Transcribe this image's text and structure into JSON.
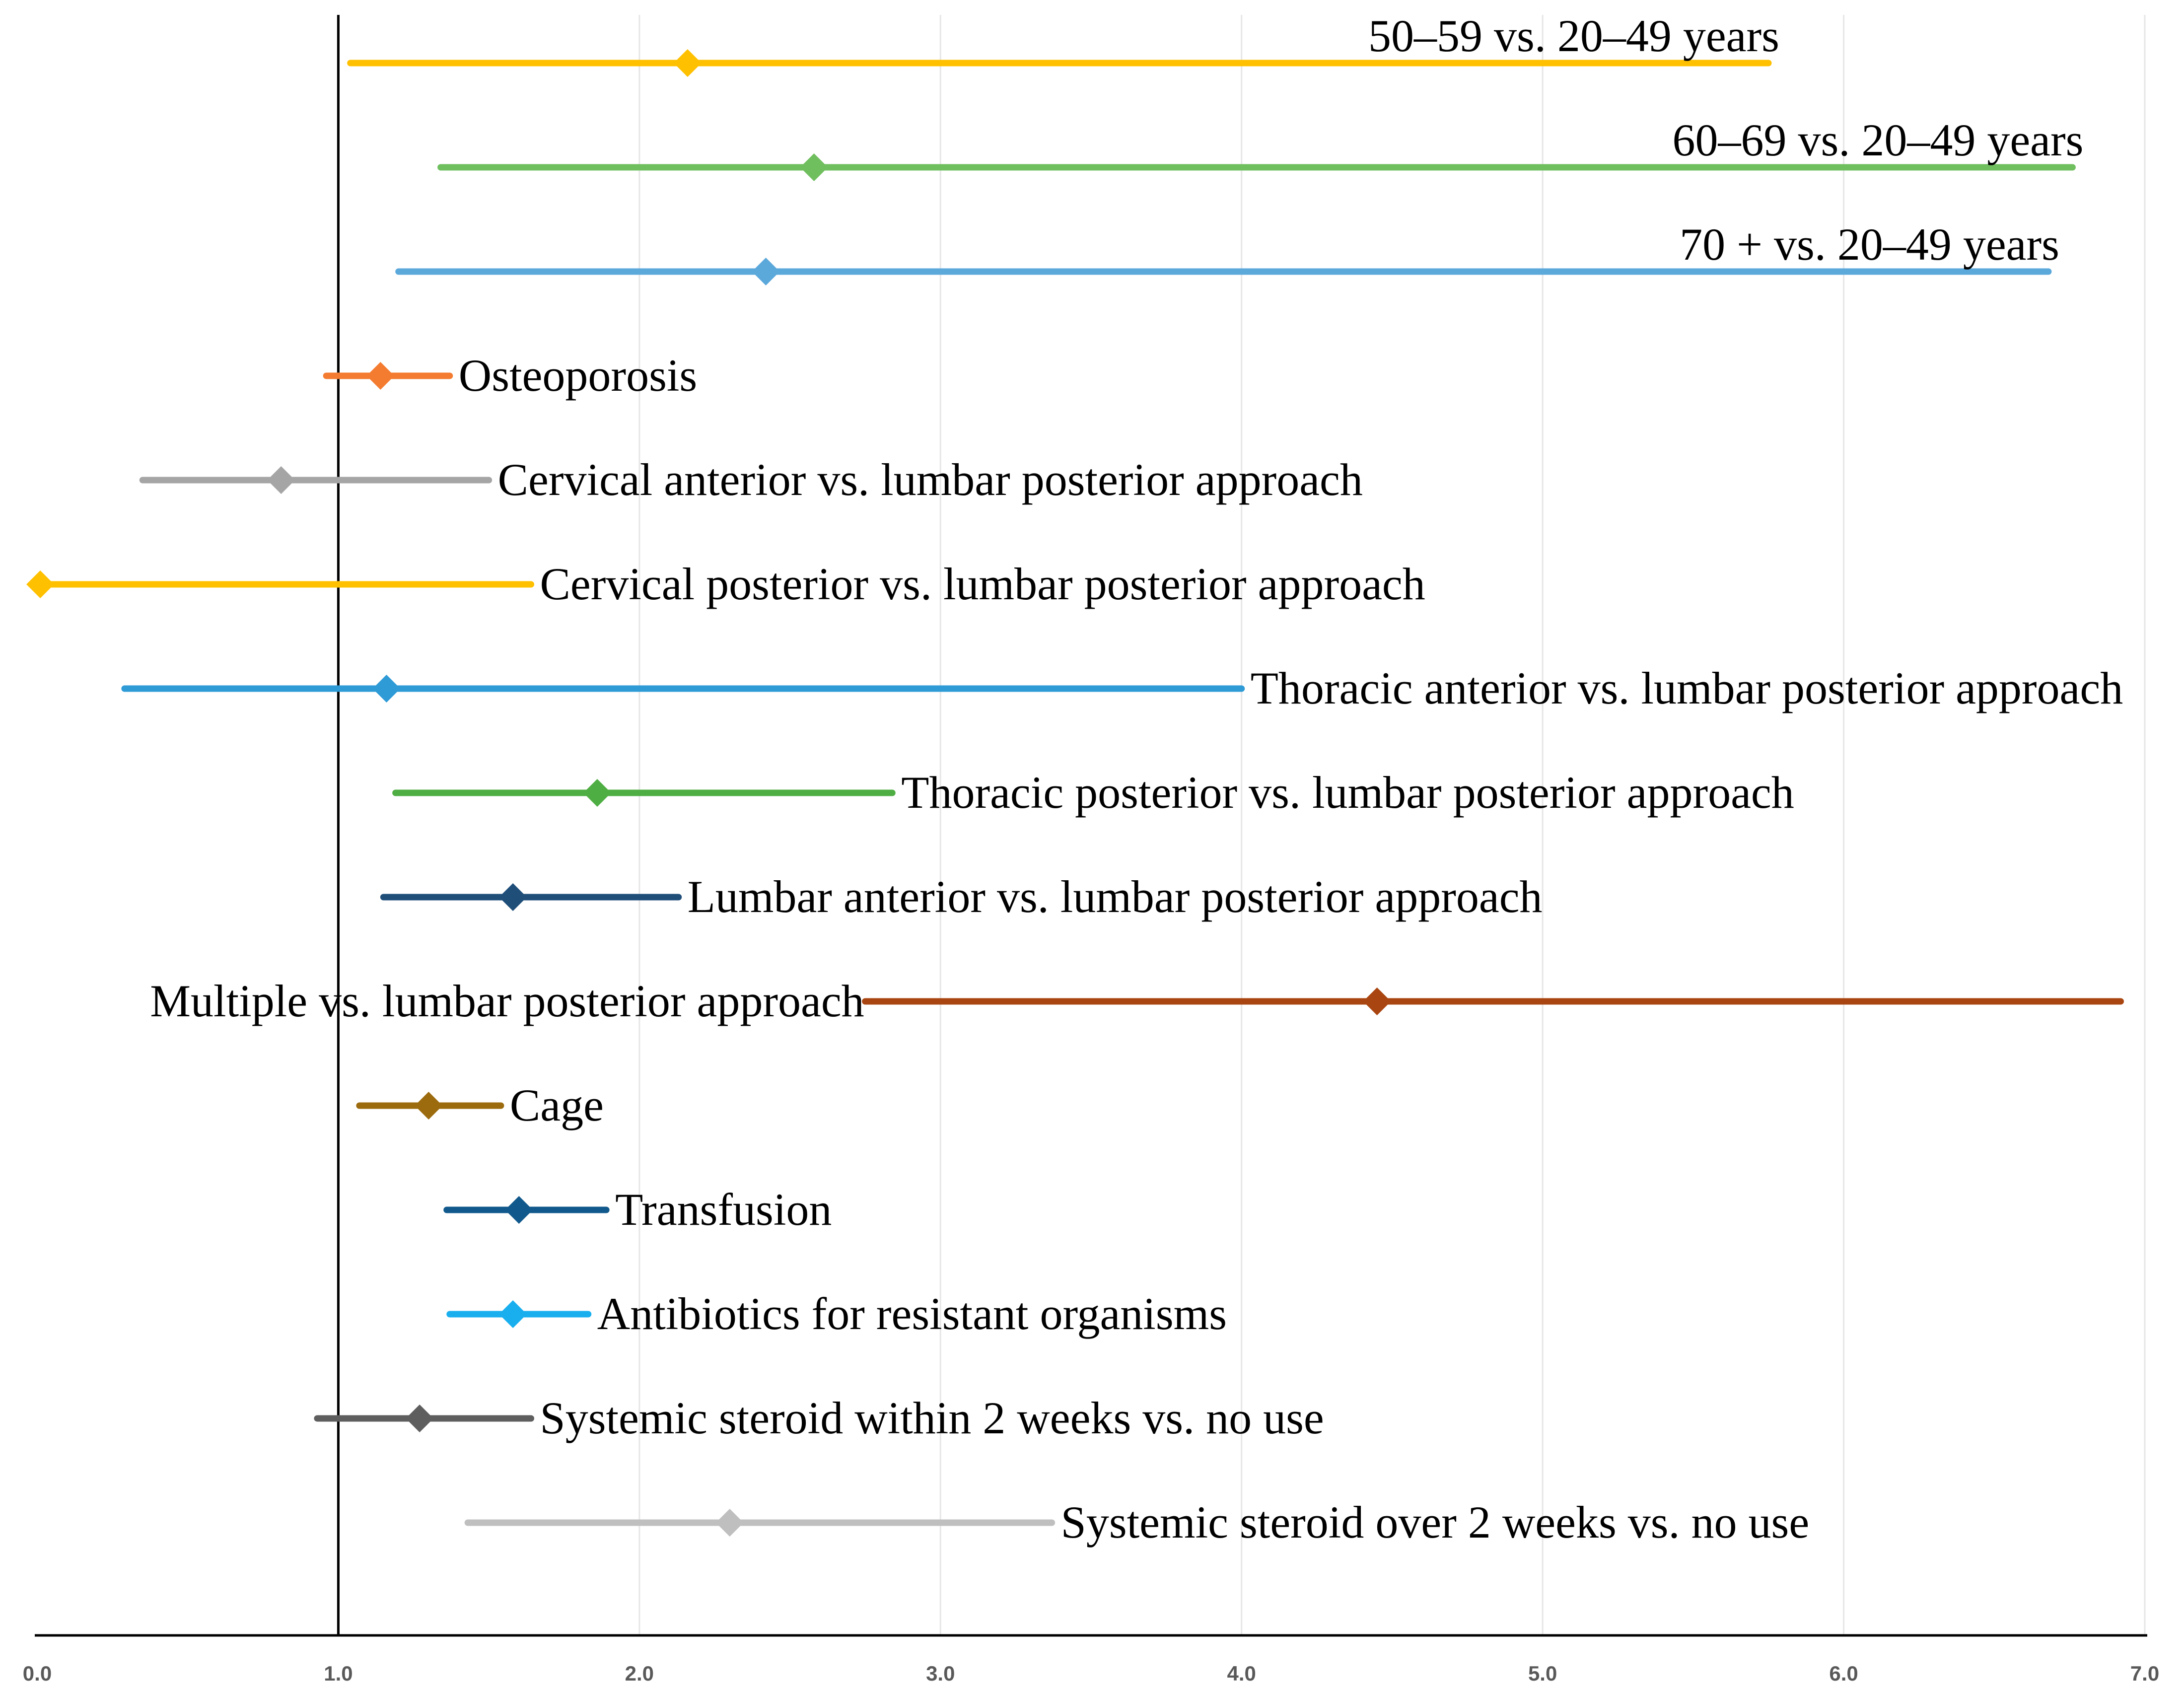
{
  "chart_data": {
    "type": "forest",
    "title": "",
    "xlabel": "",
    "ylabel": "",
    "xlim": [
      0,
      7
    ],
    "x_ticks": [
      "0.0",
      "1.0",
      "2.0",
      "3.0",
      "4.0",
      "5.0",
      "6.0",
      "7.0"
    ],
    "reference_value": 1.0,
    "grid": true,
    "series": [
      {
        "name": "50–59 vs. 20–49 years",
        "estimate": 2.16,
        "lower": 1.04,
        "upper": 5.75,
        "color": "#FFC000"
      },
      {
        "name": "60–69 vs. 20–49 years",
        "estimate": 2.58,
        "lower": 1.34,
        "upper": 6.76,
        "color": "#70BF5F"
      },
      {
        "name": "70 + vs. 20–49 years",
        "estimate": 2.42,
        "lower": 1.2,
        "upper": 6.68,
        "color": "#5BA8DB"
      },
      {
        "name": "Osteoporosis",
        "estimate": 1.14,
        "lower": 0.96,
        "upper": 1.37,
        "color": "#F47C30"
      },
      {
        "name": "Cervical anterior vs. lumbar posterior approach",
        "estimate": 0.81,
        "lower": 0.35,
        "upper": 1.5,
        "color": "#A5A5A5"
      },
      {
        "name": "Cervical posterior vs. lumbar posterior approach",
        "estimate": 0.01,
        "lower": 0.01,
        "upper": 1.64,
        "color": "#FFC000"
      },
      {
        "name": "Thoracic anterior vs. lumbar posterior approach",
        "estimate": 1.16,
        "lower": 0.29,
        "upper": 4.0,
        "color": "#2E9AD6"
      },
      {
        "name": "Thoracic posterior vs. lumbar posterior approach",
        "estimate": 1.86,
        "lower": 1.19,
        "upper": 2.84,
        "color": "#4FAE43"
      },
      {
        "name": "Lumbar anterior vs. lumbar posterior approach",
        "estimate": 1.58,
        "lower": 1.15,
        "upper": 2.13,
        "color": "#1F4E79"
      },
      {
        "name": "Multiple vs. lumbar posterior approach",
        "estimate": 4.45,
        "lower": 2.75,
        "upper": 6.92,
        "color": "#A94510"
      },
      {
        "name": "Cage",
        "estimate": 1.3,
        "lower": 1.07,
        "upper": 1.54,
        "color": "#9C6B0E"
      },
      {
        "name": "Transfusion",
        "estimate": 1.6,
        "lower": 1.36,
        "upper": 1.89,
        "color": "#11598C"
      },
      {
        "name": "Antibiotics for resistant organisms",
        "estimate": 1.58,
        "lower": 1.37,
        "upper": 1.83,
        "color": "#19AFEF"
      },
      {
        "name": "Systemic steroid within 2 weeks vs. no use",
        "estimate": 1.27,
        "lower": 0.93,
        "upper": 1.64,
        "color": "#5E5E5E"
      },
      {
        "name": "Systemic steroid over 2 weeks vs. no use",
        "estimate": 2.3,
        "lower": 1.43,
        "upper": 3.37,
        "color": "#BFBFBF"
      }
    ]
  }
}
